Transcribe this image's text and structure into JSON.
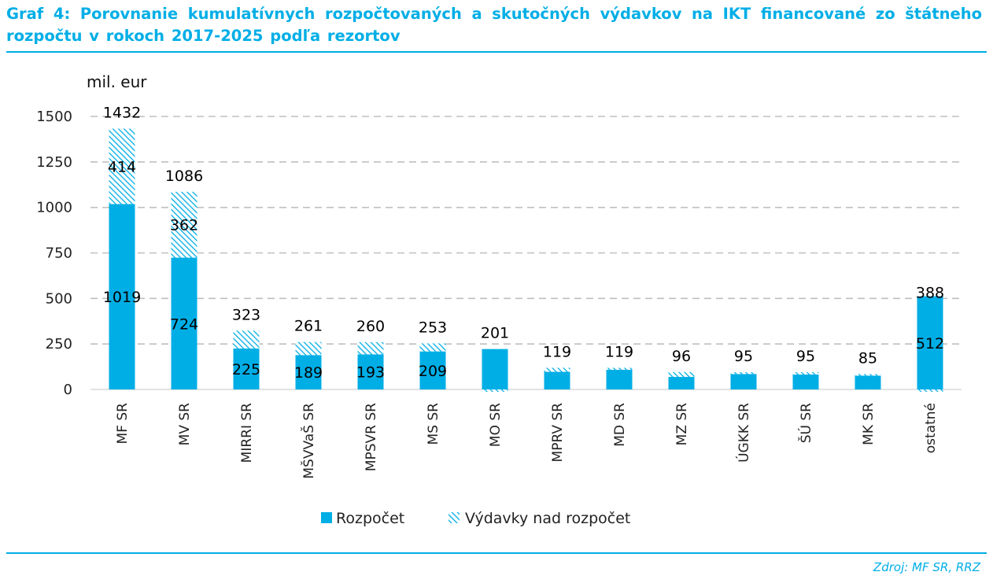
{
  "title": "Graf 4: Porovnanie kumulatívnych rozpočtovaných a skutočných výdavkov na IKT financované zo štátneho rozpočtu v rokoch 2017-2025 podľa rezortov",
  "source": "Zdroj: MF SR, RRZ",
  "colors": {
    "accent": "#00aee6",
    "budget": "#00aee6",
    "hatch": "#00aee6",
    "grid": "#bfbfbf"
  },
  "chart_data": {
    "type": "bar",
    "stacked": true,
    "unit_label": "mil. eur",
    "ylim": [
      0,
      1500
    ],
    "yticks": [
      0,
      250,
      500,
      750,
      1000,
      1250,
      1500
    ],
    "grid": true,
    "legend_position": "bottom",
    "categories": [
      "MF SR",
      "MV SR",
      "MIRRI SR",
      "MŠVVaŠ SR",
      "MPSVR SR",
      "MS SR",
      "MO SR",
      "MPRV SR",
      "MD SR",
      "MZ SR",
      "ÚGKK SR",
      "ŠÚ SR",
      "MK SR",
      "ostatné"
    ],
    "series": [
      {
        "name": "Rozpočet",
        "values": [
          1019,
          724,
          225,
          189,
          193,
          209,
          222,
          97,
          108,
          69,
          85,
          82,
          76,
          512
        ]
      },
      {
        "name": "Výdavky nad rozpočet",
        "values": [
          414,
          362,
          98,
          72,
          67,
          44,
          -21,
          22,
          11,
          27,
          10,
          13,
          9,
          -124
        ]
      }
    ],
    "total_labels": [
      "1432",
      "1086",
      "323",
      "261",
      "260",
      "253",
      "201",
      "119",
      "119",
      "96",
      "95",
      "95",
      "85",
      "388"
    ],
    "budget_labels": [
      "1019",
      "724",
      "225",
      "189",
      "193",
      "209",
      "",
      "",
      "",
      "",
      "",
      "",
      "",
      "512"
    ],
    "excess_labels": [
      "414",
      "362",
      "",
      "",
      "",
      "",
      "",
      "",
      "",
      "",
      "",
      "",
      "",
      ""
    ]
  }
}
